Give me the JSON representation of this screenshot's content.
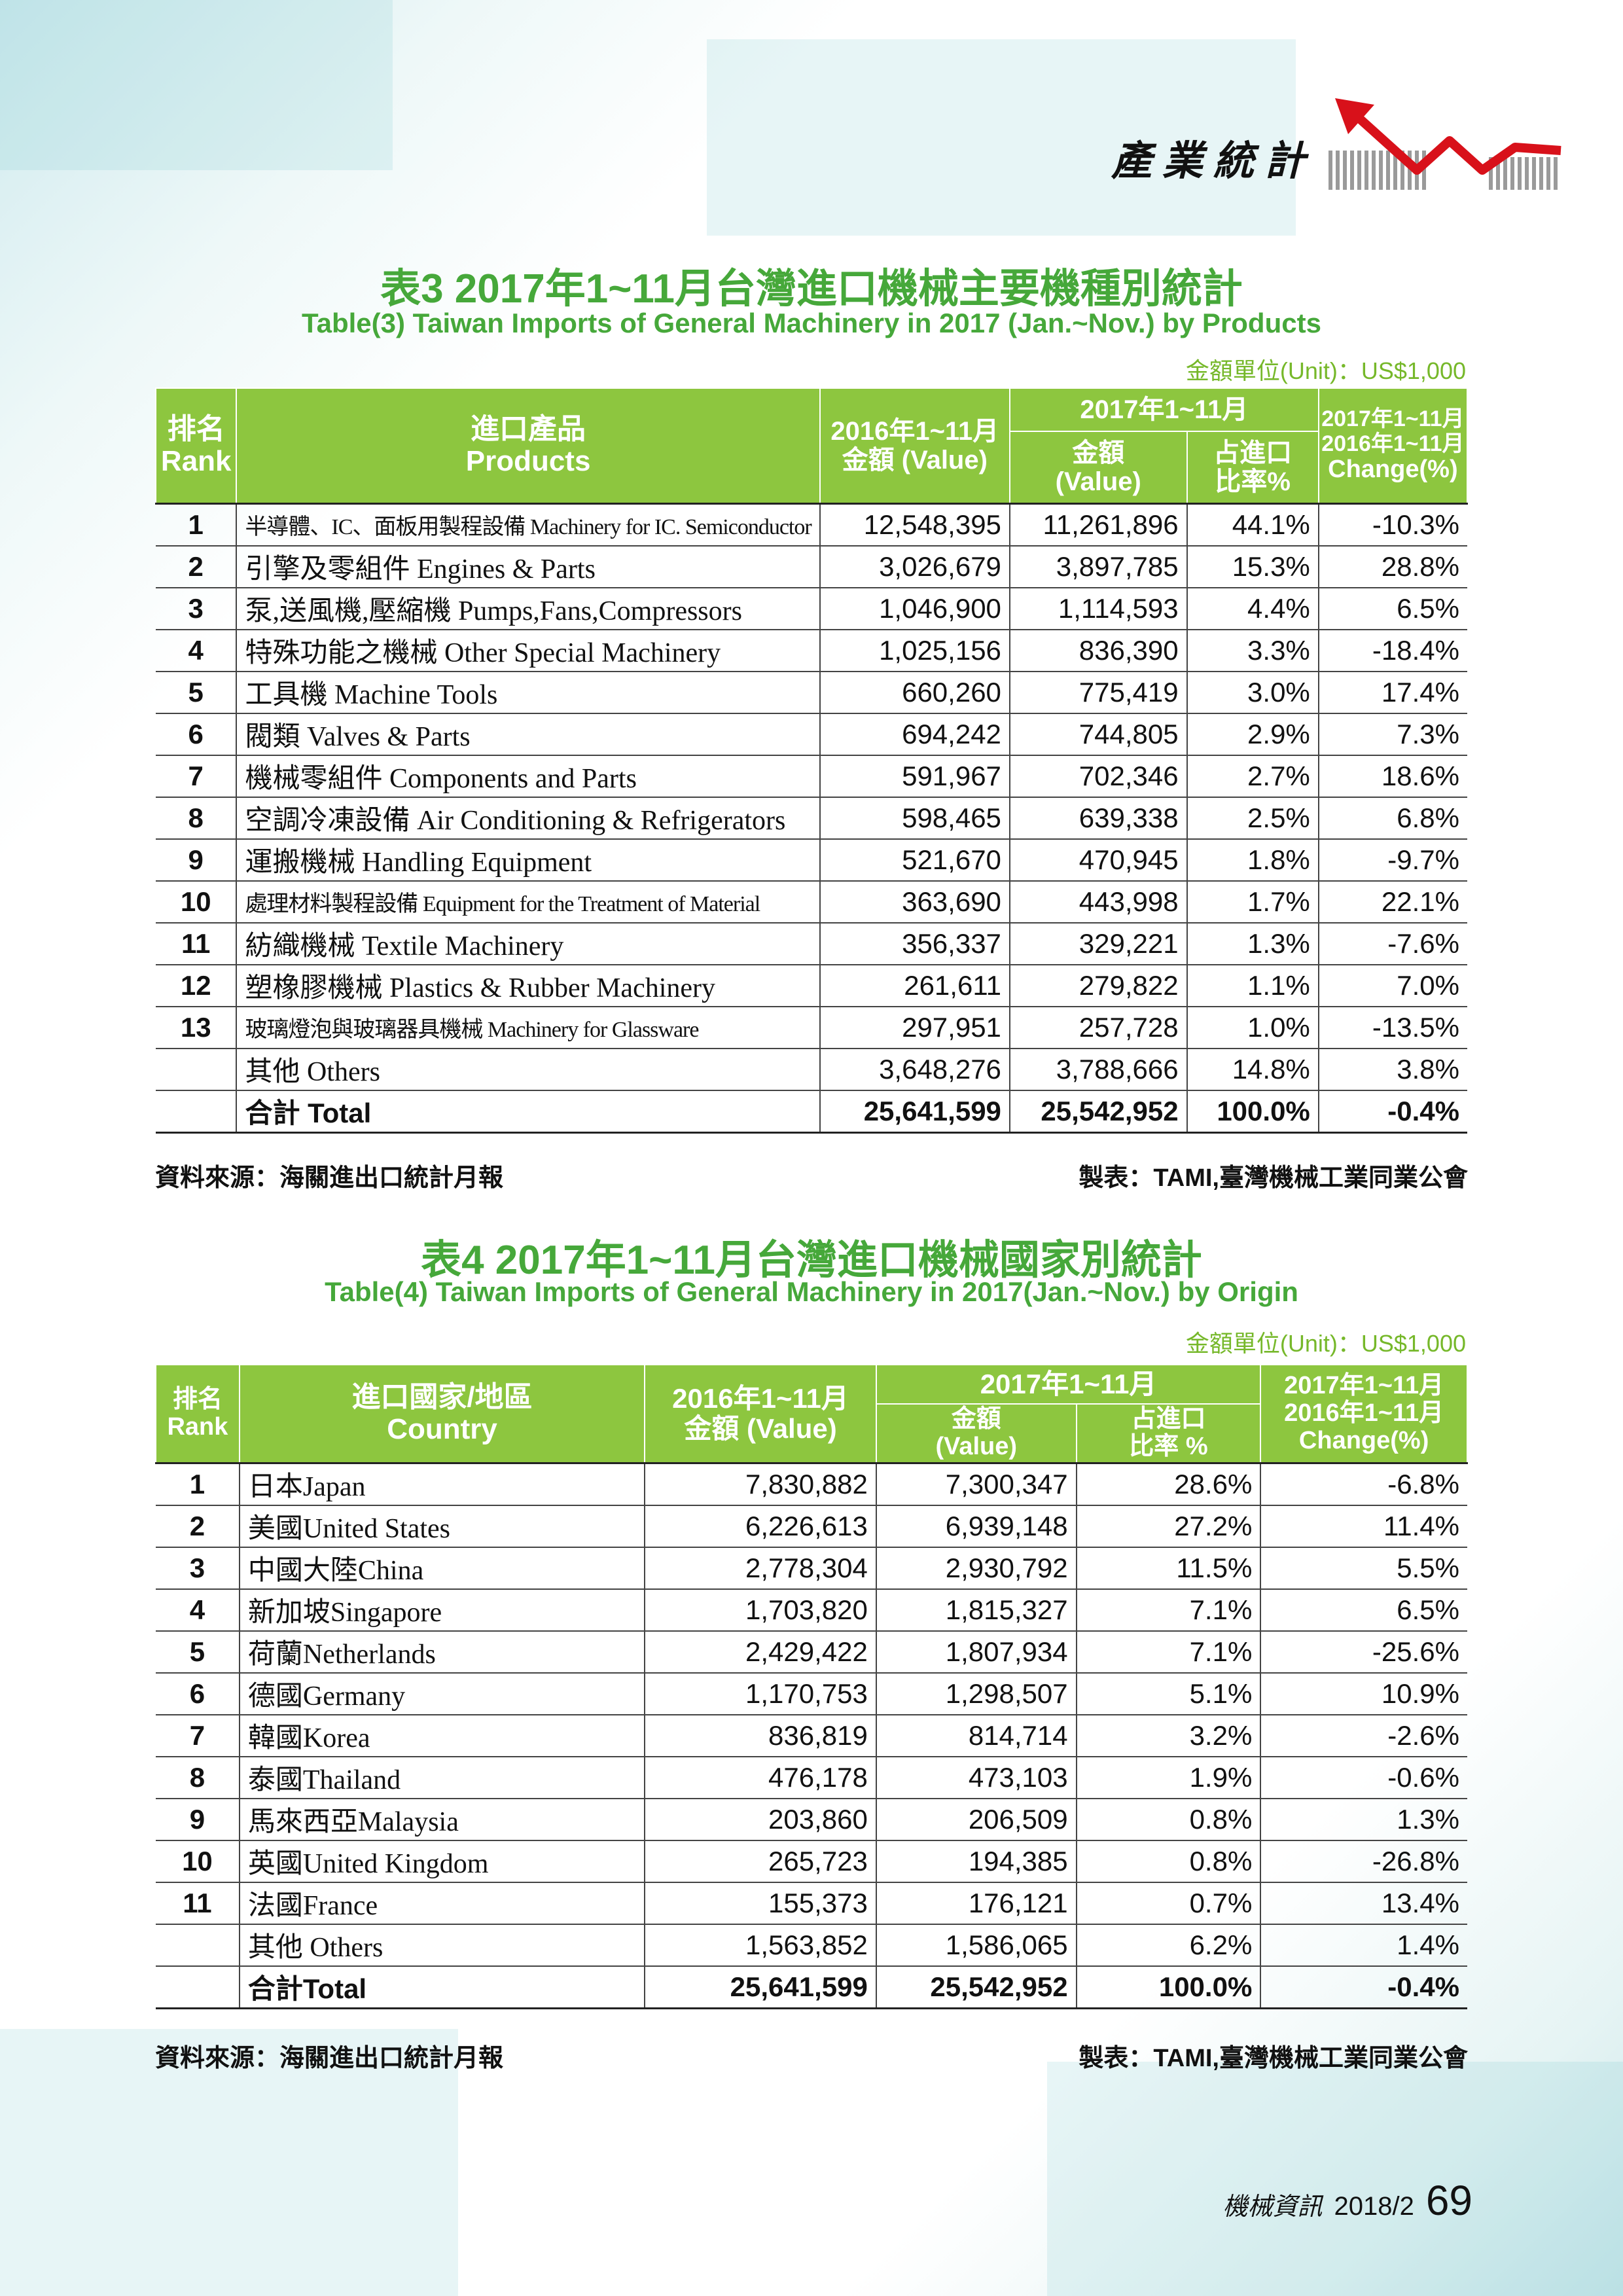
{
  "header": {
    "section": "產業統計"
  },
  "table3": {
    "title_cn": "表3  2017年1~11月台灣進口機械主要機種別統計",
    "title_en": "Table(3) Taiwan Imports of General Machinery in 2017 (Jan.~Nov.) by Products",
    "unit": "金額單位(Unit)：US$1,000",
    "headers": {
      "rank_cn": "排名",
      "rank_en": "Rank",
      "name_cn": "進口產品",
      "name_en": "Products",
      "prev_cn": "2016年1~11月",
      "prev_en": "金額 (Value)",
      "period": "2017年1~11月",
      "value_cn": "金額",
      "value_en": "(Value)",
      "share_cn": "占進口",
      "share_en": "比率%",
      "chg_1": "2017年1~11月",
      "chg_2": "2016年1~11月",
      "chg_3": "Change(%)"
    },
    "rows": [
      {
        "rank": "1",
        "name": "半導體、IC、面板用製程設備 Machinery for IC. Semiconductor",
        "v2016": "12,548,395",
        "v2017": "11,261,896",
        "share": "44.1%",
        "change": "-10.3%"
      },
      {
        "rank": "2",
        "name": "引擎及零組件 Engines & Parts",
        "v2016": "3,026,679",
        "v2017": "3,897,785",
        "share": "15.3%",
        "change": "28.8%"
      },
      {
        "rank": "3",
        "name": "泵,送風機,壓縮機 Pumps,Fans,Compressors",
        "v2016": "1,046,900",
        "v2017": "1,114,593",
        "share": "4.4%",
        "change": "6.5%"
      },
      {
        "rank": "4",
        "name": "特殊功能之機械 Other Special Machinery",
        "v2016": "1,025,156",
        "v2017": "836,390",
        "share": "3.3%",
        "change": "-18.4%"
      },
      {
        "rank": "5",
        "name": "工具機 Machine Tools",
        "v2016": "660,260",
        "v2017": "775,419",
        "share": "3.0%",
        "change": "17.4%"
      },
      {
        "rank": "6",
        "name": "閥類 Valves & Parts",
        "v2016": "694,242",
        "v2017": "744,805",
        "share": "2.9%",
        "change": "7.3%"
      },
      {
        "rank": "7",
        "name": "機械零組件 Components and Parts",
        "v2016": "591,967",
        "v2017": "702,346",
        "share": "2.7%",
        "change": "18.6%"
      },
      {
        "rank": "8",
        "name": "空調冷凍設備 Air Conditioning & Refrigerators",
        "v2016": "598,465",
        "v2017": "639,338",
        "share": "2.5%",
        "change": "6.8%"
      },
      {
        "rank": "9",
        "name": "運搬機械 Handling Equipment",
        "v2016": "521,670",
        "v2017": "470,945",
        "share": "1.8%",
        "change": "-9.7%"
      },
      {
        "rank": "10",
        "name": "處理材料製程設備 Equipment for the Treatment of Material",
        "v2016": "363,690",
        "v2017": "443,998",
        "share": "1.7%",
        "change": "22.1%"
      },
      {
        "rank": "11",
        "name": "紡織機械 Textile Machinery",
        "v2016": "356,337",
        "v2017": "329,221",
        "share": "1.3%",
        "change": "-7.6%"
      },
      {
        "rank": "12",
        "name": "塑橡膠機械 Plastics & Rubber Machinery",
        "v2016": "261,611",
        "v2017": "279,822",
        "share": "1.1%",
        "change": "7.0%"
      },
      {
        "rank": "13",
        "name": "玻璃燈泡與玻璃器具機械 Machinery for Glassware",
        "v2016": "297,951",
        "v2017": "257,728",
        "share": "1.0%",
        "change": "-13.5%"
      },
      {
        "rank": "",
        "name": "其他 Others",
        "v2016": "3,648,276",
        "v2017": "3,788,666",
        "share": "14.8%",
        "change": "3.8%"
      },
      {
        "rank": "",
        "name": "合計 Total",
        "v2016": "25,641,599",
        "v2017": "25,542,952",
        "share": "100.0%",
        "change": "-0.4%"
      }
    ],
    "source": "資料來源：海關進出口統計月報",
    "maker": "製表：TAMI,臺灣機械工業同業公會"
  },
  "table4": {
    "title_cn": "表4  2017年1~11月台灣進口機械國家別統計",
    "title_en": "Table(4) Taiwan Imports of General Machinery in 2017(Jan.~Nov.) by Origin",
    "unit": "金額單位(Unit)：US$1,000",
    "headers": {
      "rank_cn": "排名",
      "rank_en": "Rank",
      "name_cn": "進口國家/地區",
      "name_en": "Country",
      "prev_cn": "2016年1~11月",
      "prev_en": "金額 (Value)",
      "period": "2017年1~11月",
      "value_cn": "金額",
      "value_en": "(Value)",
      "share_cn": "占進口",
      "share_en": "比率 %",
      "chg_1": "2017年1~11月",
      "chg_2": "2016年1~11月",
      "chg_3": "Change(%)"
    },
    "rows": [
      {
        "rank": "1",
        "name": "日本Japan",
        "v2016": "7,830,882",
        "v2017": "7,300,347",
        "share": "28.6%",
        "change": "-6.8%"
      },
      {
        "rank": "2",
        "name": "美國United States",
        "v2016": "6,226,613",
        "v2017": "6,939,148",
        "share": "27.2%",
        "change": "11.4%"
      },
      {
        "rank": "3",
        "name": "中國大陸China",
        "v2016": "2,778,304",
        "v2017": "2,930,792",
        "share": "11.5%",
        "change": "5.5%"
      },
      {
        "rank": "4",
        "name": "新加坡Singapore",
        "v2016": "1,703,820",
        "v2017": "1,815,327",
        "share": "7.1%",
        "change": "6.5%"
      },
      {
        "rank": "5",
        "name": "荷蘭Netherlands",
        "v2016": "2,429,422",
        "v2017": "1,807,934",
        "share": "7.1%",
        "change": "-25.6%"
      },
      {
        "rank": "6",
        "name": "德國Germany",
        "v2016": "1,170,753",
        "v2017": "1,298,507",
        "share": "5.1%",
        "change": "10.9%"
      },
      {
        "rank": "7",
        "name": "韓國Korea",
        "v2016": "836,819",
        "v2017": "814,714",
        "share": "3.2%",
        "change": "-2.6%"
      },
      {
        "rank": "8",
        "name": "泰國Thailand",
        "v2016": "476,178",
        "v2017": "473,103",
        "share": "1.9%",
        "change": "-0.6%"
      },
      {
        "rank": "9",
        "name": "馬來西亞Malaysia",
        "v2016": "203,860",
        "v2017": "206,509",
        "share": "0.8%",
        "change": "1.3%"
      },
      {
        "rank": "10",
        "name": "英國United Kingdom",
        "v2016": "265,723",
        "v2017": "194,385",
        "share": "0.8%",
        "change": "-26.8%"
      },
      {
        "rank": "11",
        "name": "法國France",
        "v2016": "155,373",
        "v2017": "176,121",
        "share": "0.7%",
        "change": "13.4%"
      },
      {
        "rank": "",
        "name": "其他 Others",
        "v2016": "1,563,852",
        "v2017": "1,586,065",
        "share": "6.2%",
        "change": "1.4%"
      },
      {
        "rank": "",
        "name": "合計Total",
        "v2016": "25,641,599",
        "v2017": "25,542,952",
        "share": "100.0%",
        "change": "-0.4%"
      }
    ],
    "source": "資料來源：海關進出口統計月報",
    "maker": "製表：TAMI,臺灣機械工業同業公會"
  },
  "footer": {
    "magazine": "機械資訊",
    "issue": "2018/2",
    "page": "69"
  }
}
